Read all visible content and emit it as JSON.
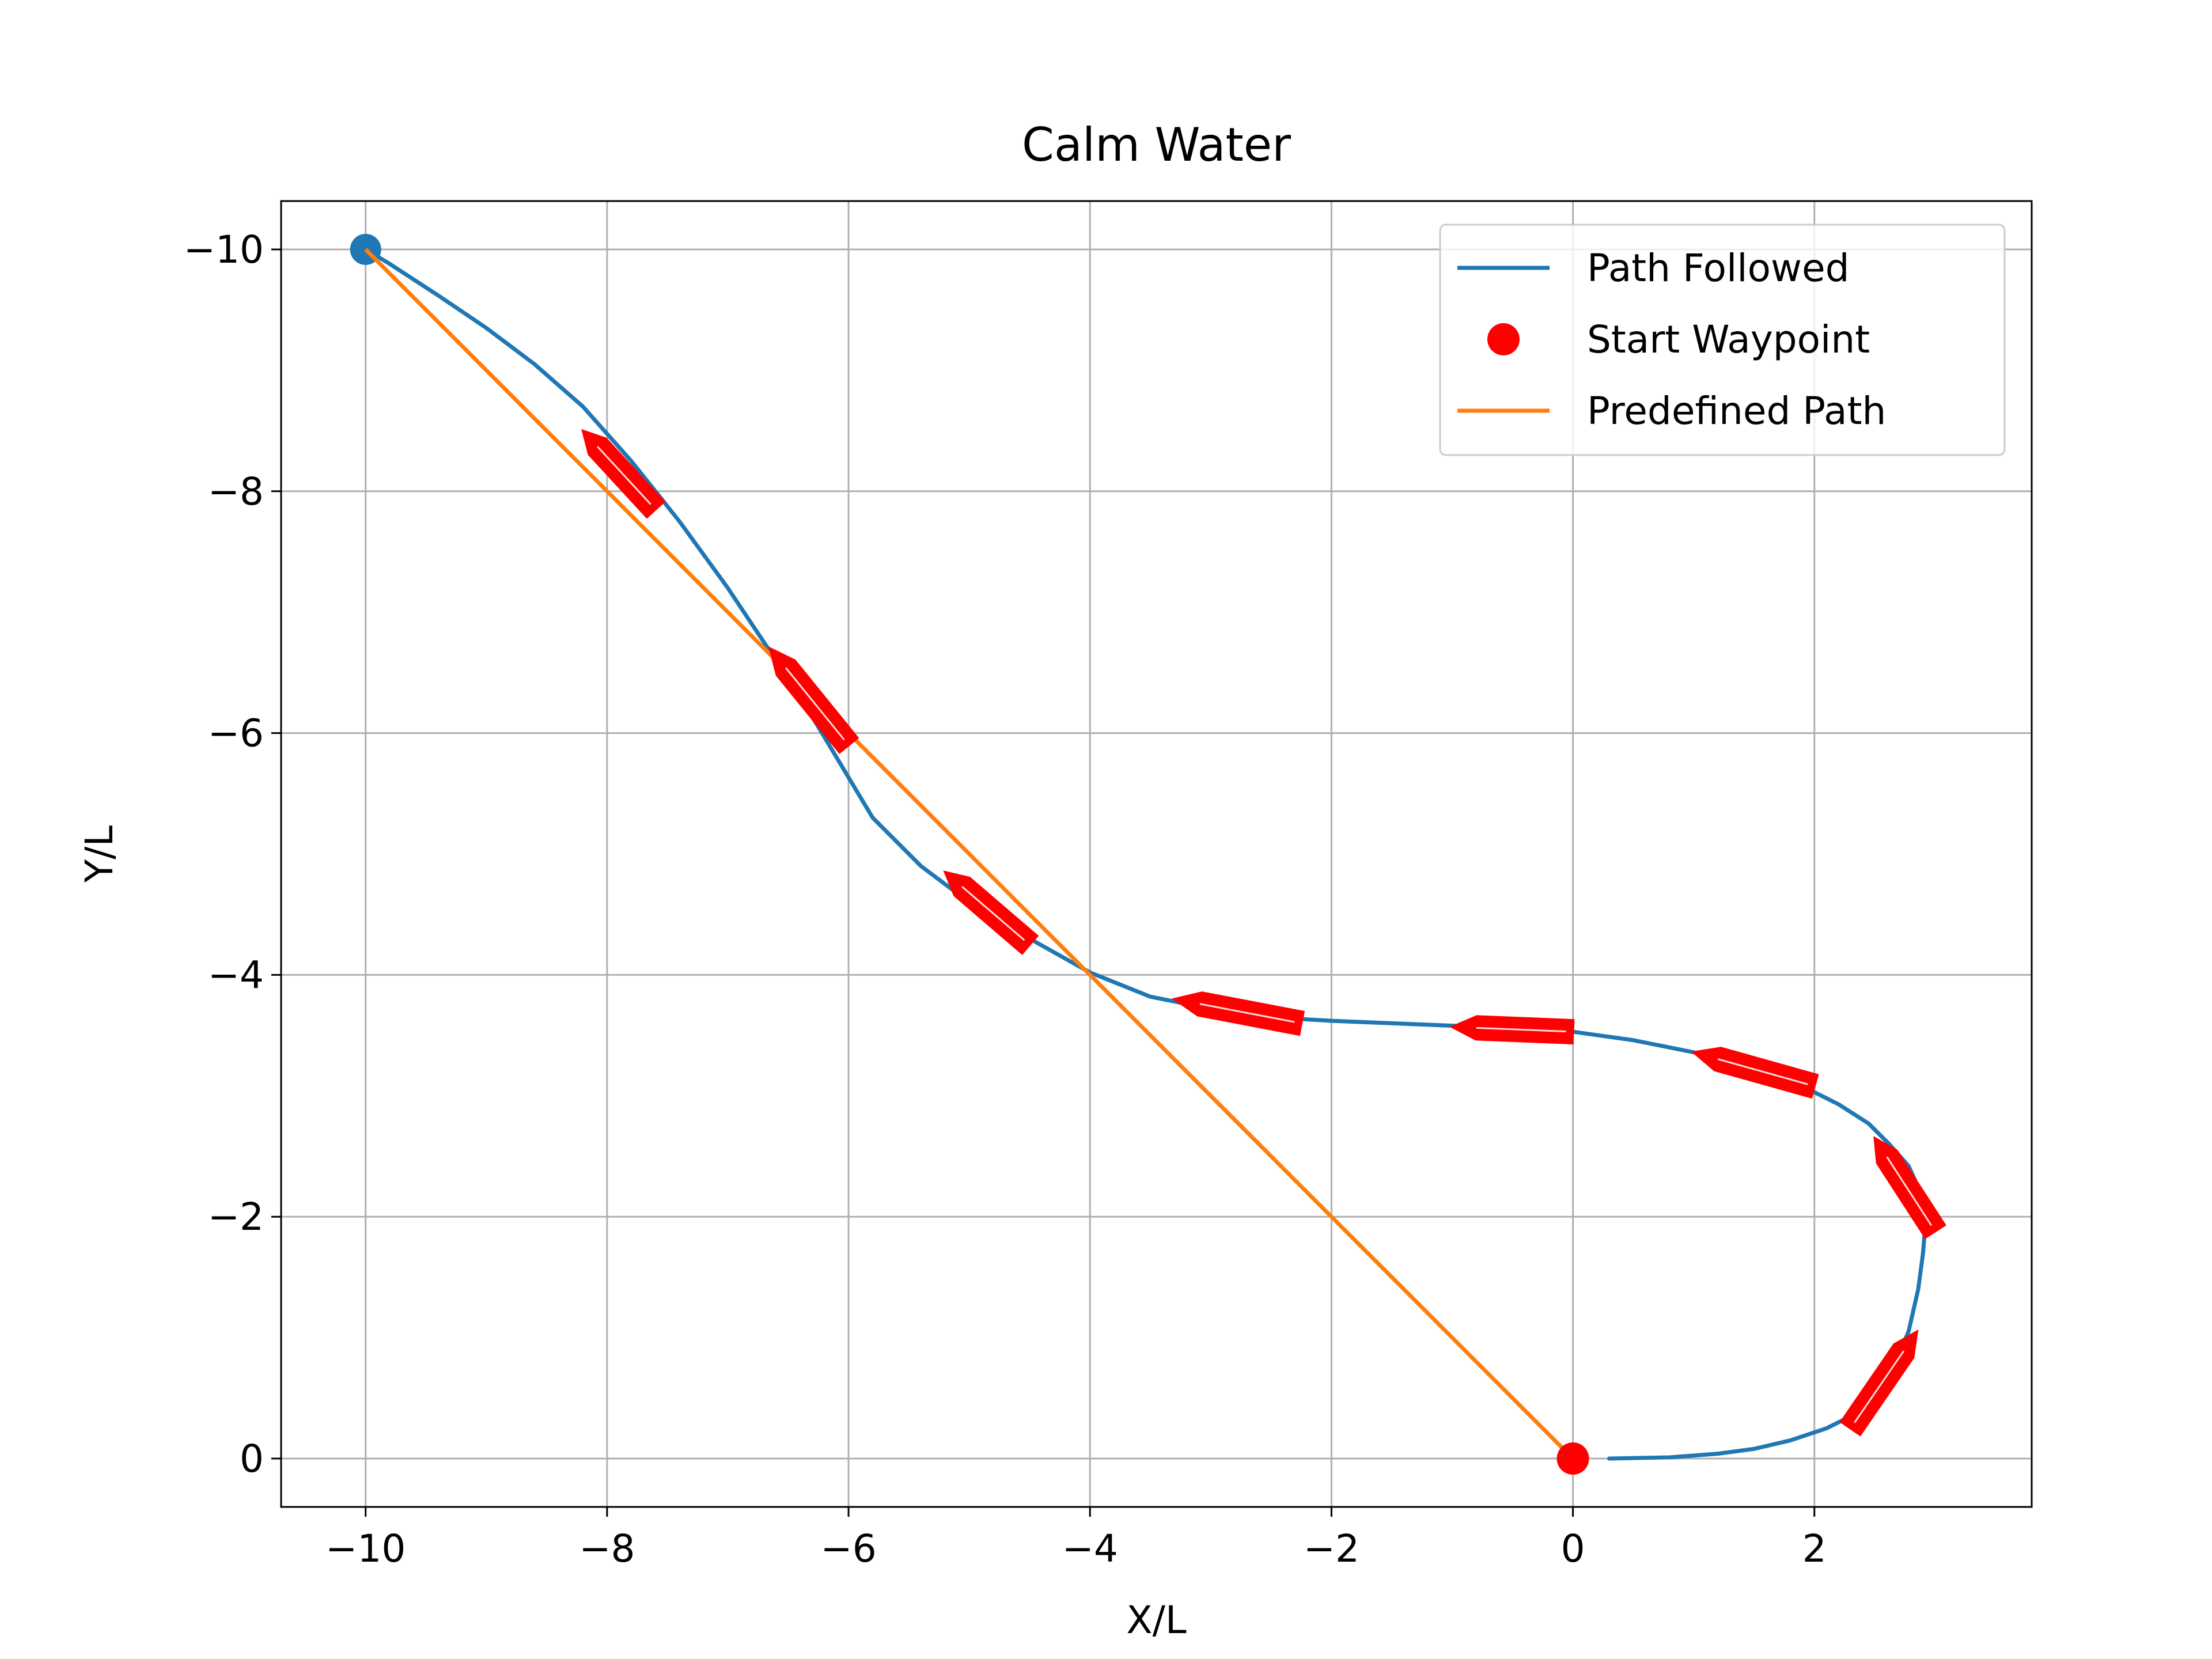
{
  "chart_data": {
    "type": "line",
    "title": "Calm Water",
    "xlabel": "X/L",
    "ylabel": "Y/L",
    "xlim": [
      -10.7,
      3.8
    ],
    "ylim": [
      0.4,
      -10.4
    ],
    "y_inverted": true,
    "grid": true,
    "xticks": [
      -10,
      -8,
      -6,
      -4,
      -2,
      0,
      2
    ],
    "xtick_labels": [
      "−10",
      "−8",
      "−6",
      "−4",
      "−2",
      "0",
      "2"
    ],
    "yticks": [
      -10,
      -8,
      -6,
      -4,
      -2,
      0
    ],
    "ytick_labels": [
      "−10",
      "−8",
      "−6",
      "−4",
      "−2",
      "0"
    ],
    "legend_position": "top-right",
    "series": [
      {
        "name": "Path Followed",
        "color": "#1f77b4",
        "kind": "line",
        "x": [
          0.3,
          0.8,
          1.2,
          1.5,
          1.8,
          2.1,
          2.3,
          2.5,
          2.65,
          2.78,
          2.86,
          2.9,
          2.92,
          2.88,
          2.78,
          2.62,
          2.45,
          2.2,
          1.9,
          1.5,
          1.0,
          0.5,
          0.0,
          -0.5,
          -1.0,
          -1.5,
          -2.0,
          -2.5,
          -3.0,
          -3.5,
          -4.0,
          -4.5,
          -5.0,
          -5.4,
          -5.8,
          -6.1,
          -6.4,
          -6.7,
          -7.0,
          -7.4,
          -7.8,
          -8.2,
          -8.6,
          -9.0,
          -9.4,
          -9.8,
          -10.0
        ],
        "y": [
          0.0,
          -0.01,
          -0.04,
          -0.08,
          -0.15,
          -0.25,
          -0.35,
          -0.52,
          -0.75,
          -1.05,
          -1.4,
          -1.7,
          -1.95,
          -2.2,
          -2.42,
          -2.6,
          -2.77,
          -2.93,
          -3.08,
          -3.22,
          -3.36,
          -3.46,
          -3.53,
          -3.56,
          -3.58,
          -3.6,
          -3.62,
          -3.65,
          -3.72,
          -3.82,
          -4.02,
          -4.3,
          -4.6,
          -4.9,
          -5.3,
          -5.8,
          -6.3,
          -6.75,
          -7.2,
          -7.75,
          -8.25,
          -8.7,
          -9.05,
          -9.35,
          -9.62,
          -9.88,
          -10.0
        ]
      },
      {
        "name": "Start Waypoint",
        "color": "#ff0000",
        "kind": "marker",
        "x": [
          0
        ],
        "y": [
          0
        ]
      },
      {
        "name": "Predefined Path",
        "color": "#ff7f0e",
        "kind": "line",
        "x": [
          -10,
          0
        ],
        "y": [
          -10,
          0
        ]
      },
      {
        "name": "",
        "color": "#1f77b4",
        "kind": "marker",
        "x": [
          -10
        ],
        "y": [
          -10
        ]
      }
    ],
    "ship_markers": {
      "color": "#ff0000",
      "items": [
        {
          "x0": -7.6,
          "y0": -7.85,
          "x1": -8.2,
          "y1": -8.5
        },
        {
          "x0": -6.0,
          "y0": -5.9,
          "x1": -6.65,
          "y1": -6.7
        },
        {
          "x0": -4.5,
          "y0": -4.25,
          "x1": -5.2,
          "y1": -4.85
        },
        {
          "x0": -2.25,
          "y0": -3.6,
          "x1": -3.3,
          "y1": -3.8
        },
        {
          "x0": 0.0,
          "y0": -3.53,
          "x1": -1.0,
          "y1": -3.57
        },
        {
          "x0": 2.0,
          "y0": -3.08,
          "x1": 1.0,
          "y1": -3.36
        },
        {
          "x0": 3.0,
          "y0": -1.88,
          "x1": 2.5,
          "y1": -2.65
        },
        {
          "x0": 2.3,
          "y0": -0.25,
          "x1": 2.85,
          "y1": -1.05
        }
      ]
    }
  }
}
